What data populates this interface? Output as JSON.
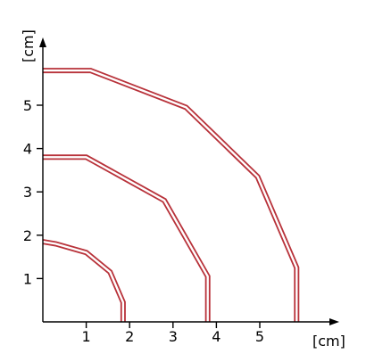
{
  "chart_data": {
    "type": "line",
    "x_unit_label": "[cm]",
    "y_unit_label": "[cm]",
    "x_ticks": [
      1,
      2,
      3,
      4,
      5
    ],
    "y_ticks": [
      1,
      2,
      3,
      4,
      5
    ],
    "xlim": [
      0,
      6.8
    ],
    "ylim": [
      0,
      6.2
    ],
    "colors": {
      "band": "#b8323a",
      "band_core": "#ffffff",
      "axis": "#000000"
    },
    "series": [
      {
        "points": [
          [
            0,
            1.85
          ],
          [
            0.3,
            1.8
          ],
          [
            1.0,
            1.6
          ],
          [
            1.55,
            1.15
          ],
          [
            1.85,
            0.45
          ],
          [
            1.85,
            0
          ]
        ]
      },
      {
        "points": [
          [
            0,
            3.8
          ],
          [
            1.0,
            3.8
          ],
          [
            2.8,
            2.8
          ],
          [
            3.8,
            1.05
          ],
          [
            3.8,
            0
          ]
        ]
      },
      {
        "points": [
          [
            0,
            5.8
          ],
          [
            1.1,
            5.8
          ],
          [
            3.3,
            4.95
          ],
          [
            4.95,
            3.35
          ],
          [
            5.85,
            1.25
          ],
          [
            5.85,
            0
          ]
        ]
      }
    ]
  }
}
